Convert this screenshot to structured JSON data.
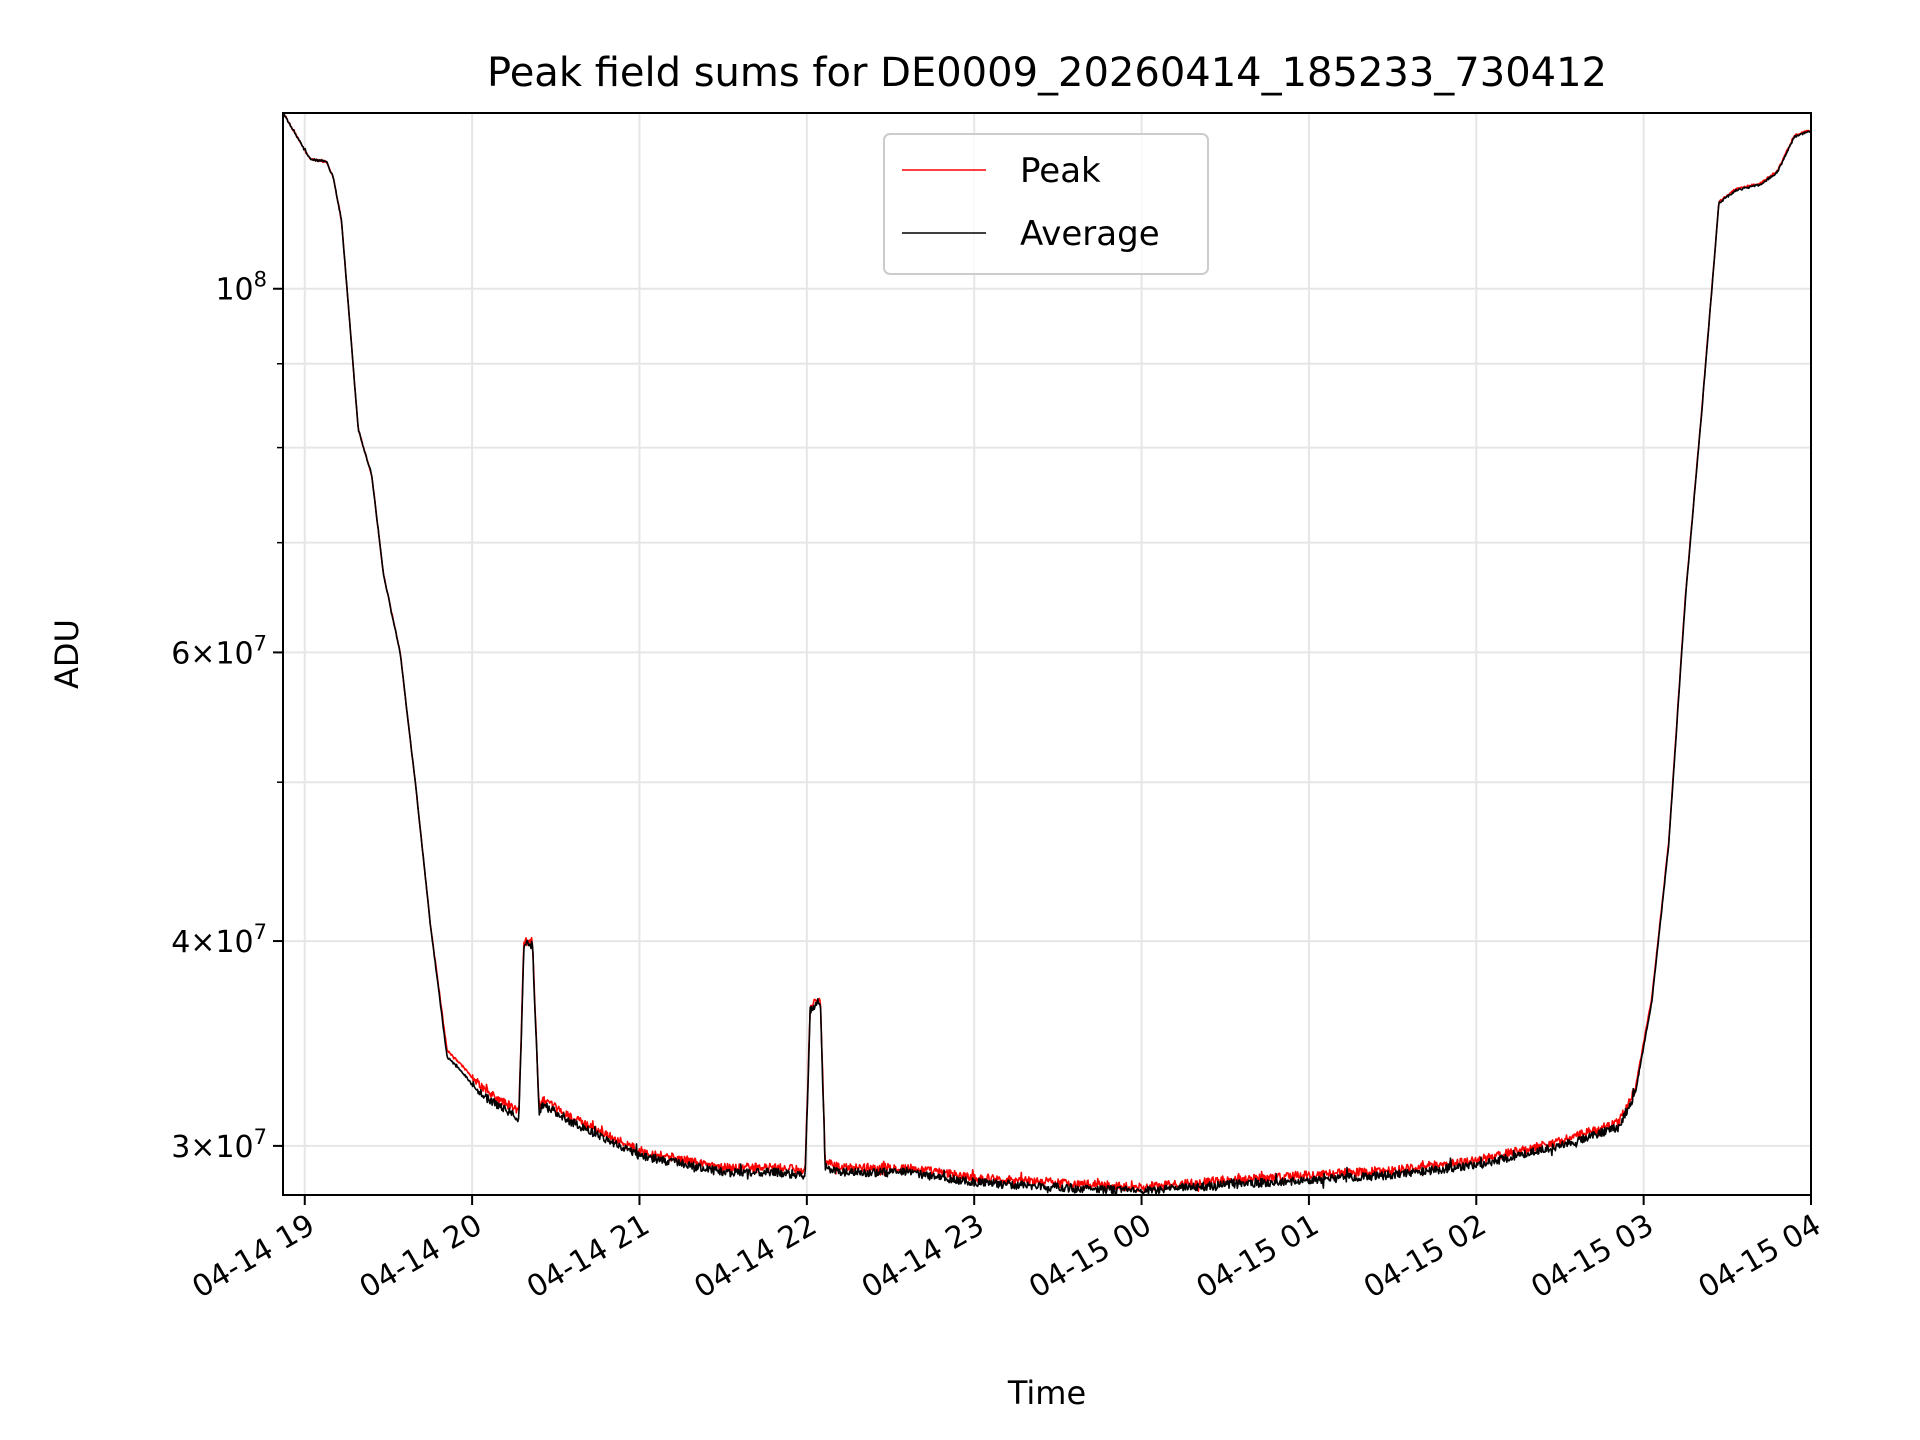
{
  "chart_data": {
    "type": "line",
    "title": "Peak field sums for DE0009_20260414_185233_730412",
    "xlabel": "Time",
    "ylabel": "ADU",
    "yscale": "log",
    "ylim": [
      28000000,
      128000000
    ],
    "xlim_hours": [
      18.87,
      28.0
    ],
    "grid": true,
    "legend_position": "top-center",
    "x_ticks": [
      {
        "hour": 19,
        "label": "04-14 19"
      },
      {
        "hour": 20,
        "label": "04-14 20"
      },
      {
        "hour": 21,
        "label": "04-14 21"
      },
      {
        "hour": 22,
        "label": "04-14 22"
      },
      {
        "hour": 23,
        "label": "04-14 23"
      },
      {
        "hour": 24,
        "label": "04-15 00"
      },
      {
        "hour": 25,
        "label": "04-15 01"
      },
      {
        "hour": 26,
        "label": "04-15 02"
      },
      {
        "hour": 27,
        "label": "04-15 03"
      },
      {
        "hour": 28,
        "label": "04-15 04"
      }
    ],
    "y_major_ticks": [
      {
        "value": 30000000,
        "base": "3",
        "exp": "7"
      },
      {
        "value": 40000000,
        "base": "4",
        "exp": "7"
      },
      {
        "value": 60000000,
        "base": "6",
        "exp": "7"
      },
      {
        "value": 100000000,
        "base": "10",
        "exp": "8"
      }
    ],
    "y_grid_values": [
      30000000,
      40000000,
      50000000,
      60000000,
      70000000,
      80000000,
      90000000,
      100000000
    ],
    "series": [
      {
        "name": "Peak",
        "color": "#ff0000",
        "offset_ratio": 1.006,
        "x_hours": [
          18.87,
          18.93,
          19.03,
          19.13,
          19.17,
          19.22,
          19.32,
          19.4,
          19.47,
          19.57,
          19.67,
          19.75,
          19.85,
          19.95,
          20.0,
          20.1,
          20.28,
          20.31,
          20.36,
          20.4,
          20.42,
          20.6,
          21.0,
          21.5,
          21.8,
          21.99,
          22.02,
          22.08,
          22.11,
          22.2,
          22.6,
          23.0,
          23.5,
          24.0,
          24.5,
          25.0,
          25.5,
          26.0,
          26.5,
          26.85,
          26.95,
          27.05,
          27.15,
          27.25,
          27.35,
          27.45,
          27.55,
          27.7,
          27.8,
          27.9,
          28.0
        ],
        "values": [
          128000000,
          125000000,
          120000000,
          119500000,
          117000000,
          110000000,
          82000000,
          77000000,
          67000000,
          60000000,
          49000000,
          41000000,
          34300000,
          33500000,
          33000000,
          32300000,
          31500000,
          40000000,
          40000000,
          31700000,
          32000000,
          31200000,
          29800000,
          29100000,
          29100000,
          29000000,
          36500000,
          37000000,
          29300000,
          29100000,
          29100000,
          28700000,
          28500000,
          28300000,
          28600000,
          28800000,
          29000000,
          29400000,
          30200000,
          31000000,
          32500000,
          37000000,
          46000000,
          65000000,
          85000000,
          113000000,
          115000000,
          116000000,
          118000000,
          124000000,
          125000000
        ]
      },
      {
        "name": "Average",
        "color": "#000000",
        "offset_ratio": 1.0,
        "x_hours": [
          18.87,
          18.93,
          19.03,
          19.13,
          19.17,
          19.22,
          19.32,
          19.4,
          19.47,
          19.57,
          19.67,
          19.75,
          19.85,
          19.95,
          20.0,
          20.1,
          20.28,
          20.31,
          20.36,
          20.4,
          20.42,
          20.6,
          21.0,
          21.5,
          21.8,
          21.99,
          22.02,
          22.08,
          22.11,
          22.2,
          22.6,
          23.0,
          23.5,
          24.0,
          24.5,
          25.0,
          25.5,
          26.0,
          26.5,
          26.85,
          26.95,
          27.05,
          27.15,
          27.25,
          27.35,
          27.45,
          27.55,
          27.7,
          27.8,
          27.9,
          28.0
        ],
        "values": [
          128000000,
          125000000,
          120000000,
          119500000,
          117000000,
          110000000,
          82000000,
          77000000,
          67000000,
          60000000,
          49000000,
          41000000,
          34000000,
          33200000,
          32700000,
          32000000,
          31200000,
          39800000,
          39800000,
          31500000,
          31800000,
          31000000,
          29600000,
          28900000,
          28900000,
          28800000,
          36300000,
          36800000,
          29100000,
          28900000,
          28900000,
          28500000,
          28300000,
          28150000,
          28400000,
          28600000,
          28800000,
          29200000,
          30000000,
          30800000,
          32300000,
          36800000,
          45800000,
          64800000,
          84800000,
          112800000,
          114800000,
          115800000,
          117800000,
          123800000,
          124800000
        ]
      }
    ]
  }
}
